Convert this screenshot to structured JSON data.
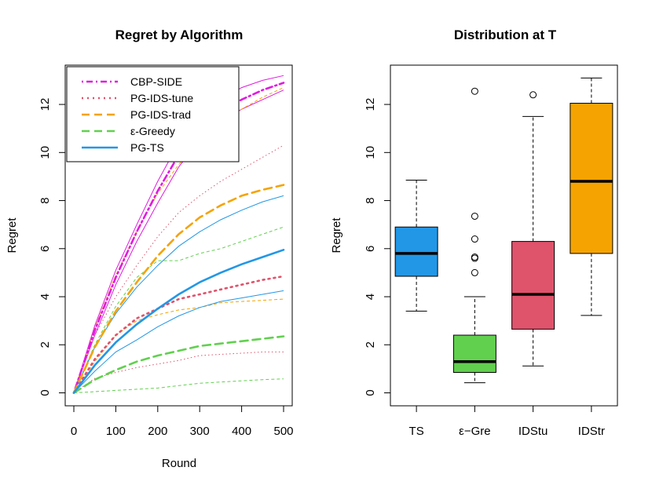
{
  "chart_data": [
    {
      "type": "line",
      "title": "Regret by Algorithm",
      "xlabel": "Round",
      "ylabel": "Regret",
      "xlim": [
        0,
        500
      ],
      "ylim": [
        0,
        13
      ],
      "xticks": [
        "0",
        "100",
        "200",
        "300",
        "400",
        "500"
      ],
      "yticks": [
        "0",
        "2",
        "4",
        "6",
        "8",
        "10",
        "12"
      ],
      "legend": {
        "position": "top-left",
        "entries": [
          "CBP-SIDE",
          "PG-IDS-tune",
          "PG-IDS-trad",
          "ε-Greedy",
          "PG-TS"
        ]
      },
      "x": [
        0,
        50,
        100,
        150,
        200,
        250,
        300,
        350,
        400,
        450,
        500
      ],
      "series": [
        {
          "name": "CBP-SIDE",
          "color": "#E01BE0",
          "style": "dotdash",
          "values": [
            0,
            2.6,
            4.8,
            6.7,
            8.4,
            9.9,
            10.9,
            11.7,
            12.2,
            12.6,
            12.9
          ],
          "lower": [
            0,
            2.4,
            4.5,
            6.3,
            7.9,
            9.4,
            10.5,
            11.3,
            11.8,
            12.2,
            12.6
          ],
          "upper": [
            0,
            2.8,
            5.1,
            7.0,
            8.8,
            10.4,
            11.4,
            12.2,
            12.7,
            13.0,
            13.2
          ]
        },
        {
          "name": "PG-IDS-tune",
          "color": "#DF536B",
          "style": "dotted",
          "values": [
            0,
            1.4,
            2.4,
            3.1,
            3.5,
            3.9,
            4.1,
            4.3,
            4.5,
            4.7,
            4.85
          ],
          "lower": [
            0,
            0.6,
            0.85,
            1.05,
            1.2,
            1.35,
            1.55,
            1.6,
            1.65,
            1.7,
            1.7
          ],
          "upper": [
            0,
            2.4,
            4.0,
            5.3,
            6.5,
            7.5,
            8.2,
            8.8,
            9.3,
            9.8,
            10.3
          ]
        },
        {
          "name": "PG-IDS-trad",
          "color": "#F5A300",
          "style": "dashed",
          "values": [
            0,
            1.9,
            3.4,
            4.6,
            5.7,
            6.6,
            7.3,
            7.8,
            8.2,
            8.45,
            8.65
          ],
          "lower": [
            0,
            1.3,
            2.4,
            3.0,
            3.25,
            3.45,
            3.55,
            3.75,
            3.8,
            3.85,
            3.9
          ],
          "upper": [
            0,
            2.7,
            4.9,
            6.7,
            8.3,
            9.5,
            10.4,
            11.2,
            11.8,
            12.3,
            12.7
          ]
        },
        {
          "name": "ε-Greedy",
          "color": "#61D04F",
          "style": "dashed",
          "values": [
            0,
            0.55,
            0.95,
            1.3,
            1.55,
            1.75,
            1.95,
            2.05,
            2.15,
            2.25,
            2.35
          ],
          "lower": [
            0,
            0.05,
            0.1,
            0.15,
            0.2,
            0.3,
            0.4,
            0.45,
            0.5,
            0.55,
            0.58
          ],
          "upper": [
            0,
            2.0,
            3.6,
            4.8,
            5.5,
            5.5,
            5.8,
            6.0,
            6.3,
            6.6,
            6.9
          ]
        },
        {
          "name": "PG-TS",
          "color": "#2297E6",
          "style": "solid",
          "values": [
            0,
            1.15,
            2.1,
            2.85,
            3.5,
            4.1,
            4.6,
            5.0,
            5.35,
            5.65,
            5.95
          ],
          "lower": [
            0,
            0.9,
            1.7,
            2.2,
            2.75,
            3.2,
            3.55,
            3.8,
            3.95,
            4.1,
            4.25
          ],
          "upper": [
            0,
            1.9,
            3.3,
            4.4,
            5.3,
            6.1,
            6.7,
            7.2,
            7.6,
            7.95,
            8.2
          ]
        }
      ]
    },
    {
      "type": "boxplot",
      "title": "Distribution at T",
      "ylabel": "Regret",
      "ylim": [
        0,
        13
      ],
      "yticks": [
        "0",
        "2",
        "4",
        "6",
        "8",
        "10",
        "12"
      ],
      "categories": [
        "TS",
        "ε−Gre",
        "IDStu",
        "IDStr"
      ],
      "boxes": [
        {
          "name": "TS",
          "color": "#2297E6",
          "whisker_low": 3.4,
          "q1": 4.85,
          "median": 5.8,
          "q3": 6.9,
          "whisker_high": 8.85,
          "outliers": []
        },
        {
          "name": "ε−Gre",
          "color": "#61D04F",
          "whisker_low": 0.42,
          "q1": 0.85,
          "median": 1.3,
          "q3": 2.4,
          "whisker_high": 4.0,
          "outliers": [
            5.0,
            5.6,
            5.65,
            6.4,
            7.35,
            12.55
          ]
        },
        {
          "name": "IDStu",
          "color": "#DF536B",
          "whisker_low": 1.12,
          "q1": 2.65,
          "median": 4.1,
          "q3": 6.3,
          "whisker_high": 11.5,
          "outliers": [
            12.4
          ]
        },
        {
          "name": "IDStr",
          "color": "#F5A300",
          "whisker_low": 3.22,
          "q1": 5.8,
          "median": 8.8,
          "q3": 12.05,
          "whisker_high": 13.1,
          "outliers": []
        }
      ]
    }
  ]
}
